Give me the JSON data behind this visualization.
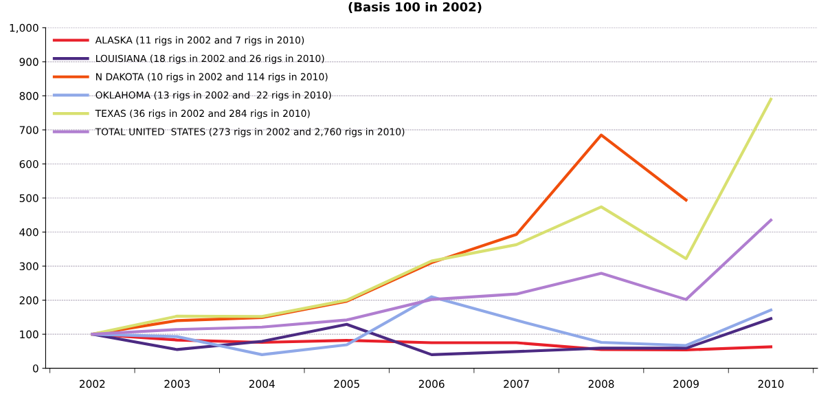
{
  "chart_data": {
    "type": "line",
    "title": "(Basis 100 in 2002)",
    "categories": [
      "2002",
      "2003",
      "2004",
      "2005",
      "2006",
      "2007",
      "2008",
      "2009",
      "2010"
    ],
    "series": [
      {
        "name": "ALASKA (11 rigs in 2002 and 7 rigs in 2010)",
        "color": "#e8202a",
        "values": [
          100,
          83,
          76,
          82,
          75,
          75,
          55,
          54,
          63
        ]
      },
      {
        "name": "LOUISIANA (18 rigs in 2002 and 26 rigs in 2010)",
        "color": "#4b2a82",
        "values": [
          100,
          55,
          79,
          129,
          40,
          49,
          59,
          59,
          146
        ]
      },
      {
        "name": "N DAKOTA (10 rigs in 2002 and 114 rigs in 2010)",
        "color": "#f04e0c",
        "values": [
          100,
          140,
          149,
          197,
          310,
          393,
          685,
          494,
          null
        ]
      },
      {
        "name": "OKLAHOMA (13 rigs in 2002 and  22 rigs in 2010)",
        "color": "#8fa8e8",
        "values": [
          100,
          93,
          40,
          69,
          210,
          141,
          76,
          67,
          171
        ]
      },
      {
        "name": "TEXAS (36 rigs in 2002 and 284 rigs in 2010)",
        "color": "#d8e070",
        "values": [
          100,
          153,
          152,
          200,
          315,
          363,
          474,
          322,
          790
        ]
      },
      {
        "name": "TOTAL UNITED  STATES (273 rigs in 2002 and 2,760 rigs in 2010)",
        "color": "#b07ed0",
        "values": [
          100,
          114,
          121,
          142,
          202,
          218,
          279,
          202,
          435
        ]
      }
    ],
    "ylim": [
      0,
      1000
    ],
    "yticks": [
      0,
      100,
      200,
      300,
      400,
      500,
      600,
      700,
      800,
      900,
      {
        "value": 1000,
        "label": "1,000"
      }
    ],
    "grid": "y",
    "legend": "top left",
    "marker": "none",
    "line_style": "solid"
  }
}
